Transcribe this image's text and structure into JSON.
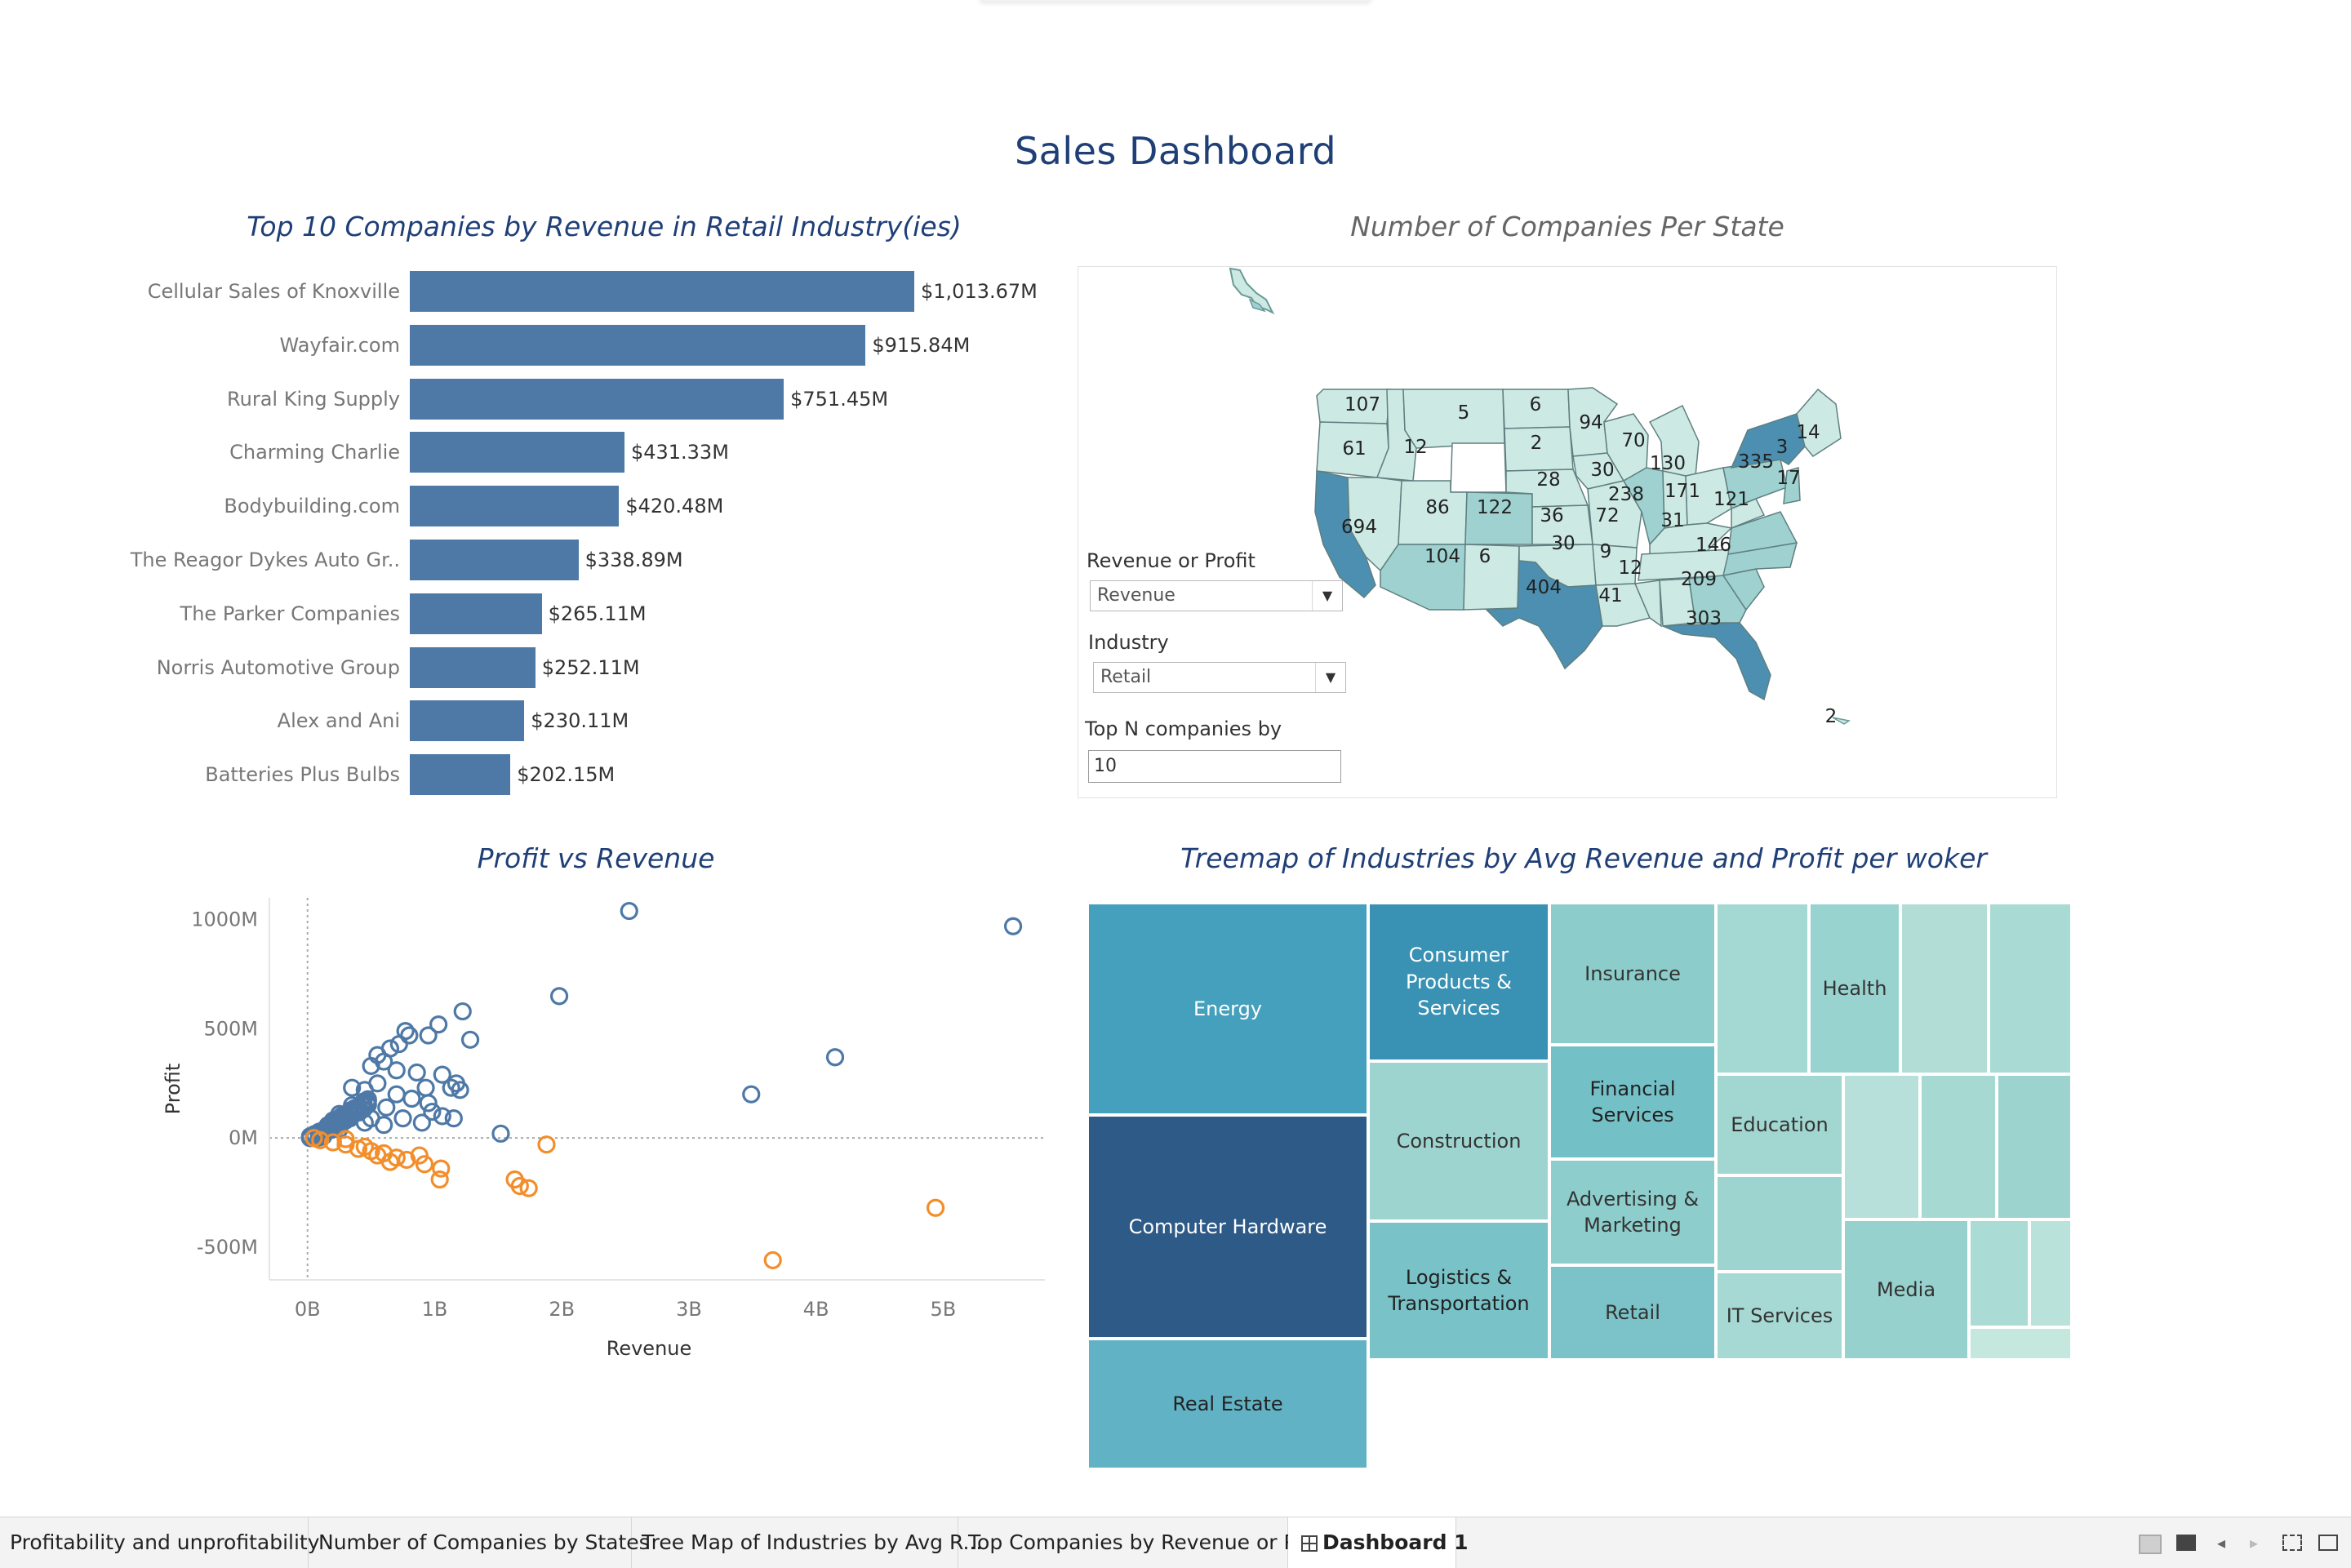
{
  "page_title": "Sales Dashboard",
  "bar_chart": {
    "title": "Top 10 Companies by Revenue  in Retail Industry(ies)",
    "items": [
      {
        "label": "Cellular Sales of Knoxville",
        "value_label": "$1,013.67M",
        "value": 1013.67
      },
      {
        "label": "Wayfair.com",
        "value_label": "$915.84M",
        "value": 915.84
      },
      {
        "label": "Rural King Supply",
        "value_label": "$751.45M",
        "value": 751.45
      },
      {
        "label": "Charming Charlie",
        "value_label": "$431.33M",
        "value": 431.33
      },
      {
        "label": "Bodybuilding.com",
        "value_label": "$420.48M",
        "value": 420.48
      },
      {
        "label": "The Reagor Dykes Auto Gr..",
        "value_label": "$338.89M",
        "value": 338.89
      },
      {
        "label": "The Parker Companies",
        "value_label": "$265.11M",
        "value": 265.11
      },
      {
        "label": "Norris Automotive Group",
        "value_label": "$252.11M",
        "value": 252.11
      },
      {
        "label": "Alex and Ani",
        "value_label": "$230.11M",
        "value": 230.11
      },
      {
        "label": "Batteries Plus Bulbs",
        "value_label": "$202.15M",
        "value": 202.15
      }
    ],
    "bar_color": "#4e79a7"
  },
  "map": {
    "title": "Number of Companies Per State",
    "state_counts": [
      "107",
      "5",
      "6",
      "94",
      "70",
      "14",
      "3",
      "61",
      "12",
      "2",
      "335",
      "17",
      "30",
      "130",
      "28",
      "238",
      "171",
      "121",
      "694",
      "86",
      "122",
      "36",
      "72",
      "31",
      "146",
      "30",
      "9",
      "12",
      "104",
      "6",
      "404",
      "41",
      "209",
      "303",
      "2"
    ],
    "colors": {
      "light": "#cde9e3",
      "mid": "#9ed1d0",
      "dark": "#4d8fb0",
      "darkest": "#3f6f99"
    }
  },
  "controls": {
    "revenue_or_profit_label": "Revenue or Profit",
    "revenue_or_profit_value": "Revenue",
    "industry_label": "Industry",
    "industry_value": "Retail",
    "top_n_label": "Top N companies by",
    "top_n_value": "10"
  },
  "scatter": {
    "title": "Profit vs Revenue",
    "xlabel": "Revenue",
    "ylabel": "Profit",
    "x_ticks": [
      "0B",
      "1B",
      "2B",
      "3B",
      "4B",
      "5B"
    ],
    "y_ticks": [
      "1000M",
      "500M",
      "0M",
      "-500M"
    ],
    "xlim": [
      0,
      5.8
    ],
    "ylim": [
      -650,
      1100
    ],
    "colors": {
      "profit": "#4e79a7",
      "loss": "#f28e2b"
    }
  },
  "chart_data": {
    "type": "scatter",
    "title": "Profit vs Revenue",
    "xlabel": "Revenue",
    "ylabel": "Profit",
    "x_unit": "B",
    "y_unit": "M",
    "xlim": [
      -0.3,
      5.8
    ],
    "ylim": [
      -650,
      1100
    ],
    "series": [
      {
        "color": "#4e79a7",
        "points": [
          [
            2.53,
            1040
          ],
          [
            5.55,
            970
          ],
          [
            1.98,
            650
          ],
          [
            1.22,
            580
          ],
          [
            1.03,
            520
          ],
          [
            0.77,
            490
          ],
          [
            0.8,
            470
          ],
          [
            0.95,
            470
          ],
          [
            1.28,
            450
          ],
          [
            0.72,
            430
          ],
          [
            0.65,
            410
          ],
          [
            0.55,
            380
          ],
          [
            0.6,
            350
          ],
          [
            0.5,
            330
          ],
          [
            0.7,
            310
          ],
          [
            0.86,
            300
          ],
          [
            1.06,
            290
          ],
          [
            1.17,
            250
          ],
          [
            1.13,
            230
          ],
          [
            1.2,
            220
          ],
          [
            0.93,
            230
          ],
          [
            0.55,
            250
          ],
          [
            0.45,
            220
          ],
          [
            0.35,
            230
          ],
          [
            0.7,
            200
          ],
          [
            0.82,
            180
          ],
          [
            0.95,
            160
          ],
          [
            0.62,
            140
          ],
          [
            0.4,
            120
          ],
          [
            0.3,
            100
          ],
          [
            0.2,
            80
          ],
          [
            0.15,
            50
          ],
          [
            0.1,
            30
          ],
          [
            0.05,
            10
          ],
          [
            0.25,
            40
          ],
          [
            0.5,
            90
          ],
          [
            1.06,
            100
          ],
          [
            0.98,
            120
          ],
          [
            1.15,
            90
          ],
          [
            0.9,
            70
          ],
          [
            1.52,
            20
          ],
          [
            3.49,
            200
          ],
          [
            4.15,
            370
          ],
          [
            0.35,
            150
          ],
          [
            0.25,
            110
          ],
          [
            0.45,
            70
          ],
          [
            0.6,
            60
          ],
          [
            0.75,
            90
          ]
        ]
      },
      {
        "color": "#f28e2b",
        "points": [
          [
            0.05,
            0
          ],
          [
            0.1,
            -10
          ],
          [
            0.2,
            -20
          ],
          [
            0.3,
            -30
          ],
          [
            0.4,
            -50
          ],
          [
            0.5,
            -60
          ],
          [
            0.6,
            -70
          ],
          [
            0.7,
            -90
          ],
          [
            0.78,
            -100
          ],
          [
            0.65,
            -110
          ],
          [
            0.88,
            -80
          ],
          [
            0.92,
            -120
          ],
          [
            1.05,
            -140
          ],
          [
            1.04,
            -190
          ],
          [
            1.63,
            -190
          ],
          [
            1.67,
            -220
          ],
          [
            1.74,
            -230
          ],
          [
            1.88,
            -30
          ],
          [
            3.66,
            -560
          ],
          [
            4.94,
            -320
          ],
          [
            0.3,
            -5
          ],
          [
            0.45,
            -40
          ],
          [
            0.55,
            -80
          ]
        ]
      }
    ]
  },
  "treemap": {
    "title": "Treemap of Industries by Avg Revenue and Profit per woker",
    "cells": [
      {
        "label": "Energy",
        "color": "#44a0bc",
        "text": "#ffffff"
      },
      {
        "label": "Computer Hardware",
        "color": "#2e5a87",
        "text": "#ffffff"
      },
      {
        "label": "Real Estate",
        "color": "#62b2c5",
        "text": "#222222"
      },
      {
        "label": "Consumer\nProducts &\nServices",
        "color": "#3991b3",
        "text": "#ffffff"
      },
      {
        "label": "Construction",
        "color": "#9ed4d0",
        "text": "#333333"
      },
      {
        "label": "Logistics &\nTransportation",
        "color": "#79c2c8",
        "text": "#222222"
      },
      {
        "label": "Insurance",
        "color": "#8ccdcb",
        "text": "#333333"
      },
      {
        "label": "Financial\nServices",
        "color": "#74c0c7",
        "text": "#222222"
      },
      {
        "label": "Advertising &\nMarketing",
        "color": "#8dcdcc",
        "text": "#333333"
      },
      {
        "label": "Retail",
        "color": "#7bc3c8",
        "text": "#333333"
      },
      {
        "label": "Health",
        "color": "#99d3cf",
        "text": "#333333"
      },
      {
        "label": "Education",
        "color": "#a2d7d1",
        "text": "#333333"
      },
      {
        "label": "IT Services",
        "color": "#a6d9d3",
        "text": "#333333"
      },
      {
        "label": "Media",
        "color": "#96d1ce",
        "text": "#333333"
      }
    ]
  },
  "tabs": [
    {
      "label": "Profitability and unprofitability"
    },
    {
      "label": "Number of Companies by States"
    },
    {
      "label": "Tree Map of Industries by Avg R..."
    },
    {
      "label": "Top Companies by Revenue or P..."
    },
    {
      "label": "Dashboard 1",
      "active": true
    }
  ]
}
